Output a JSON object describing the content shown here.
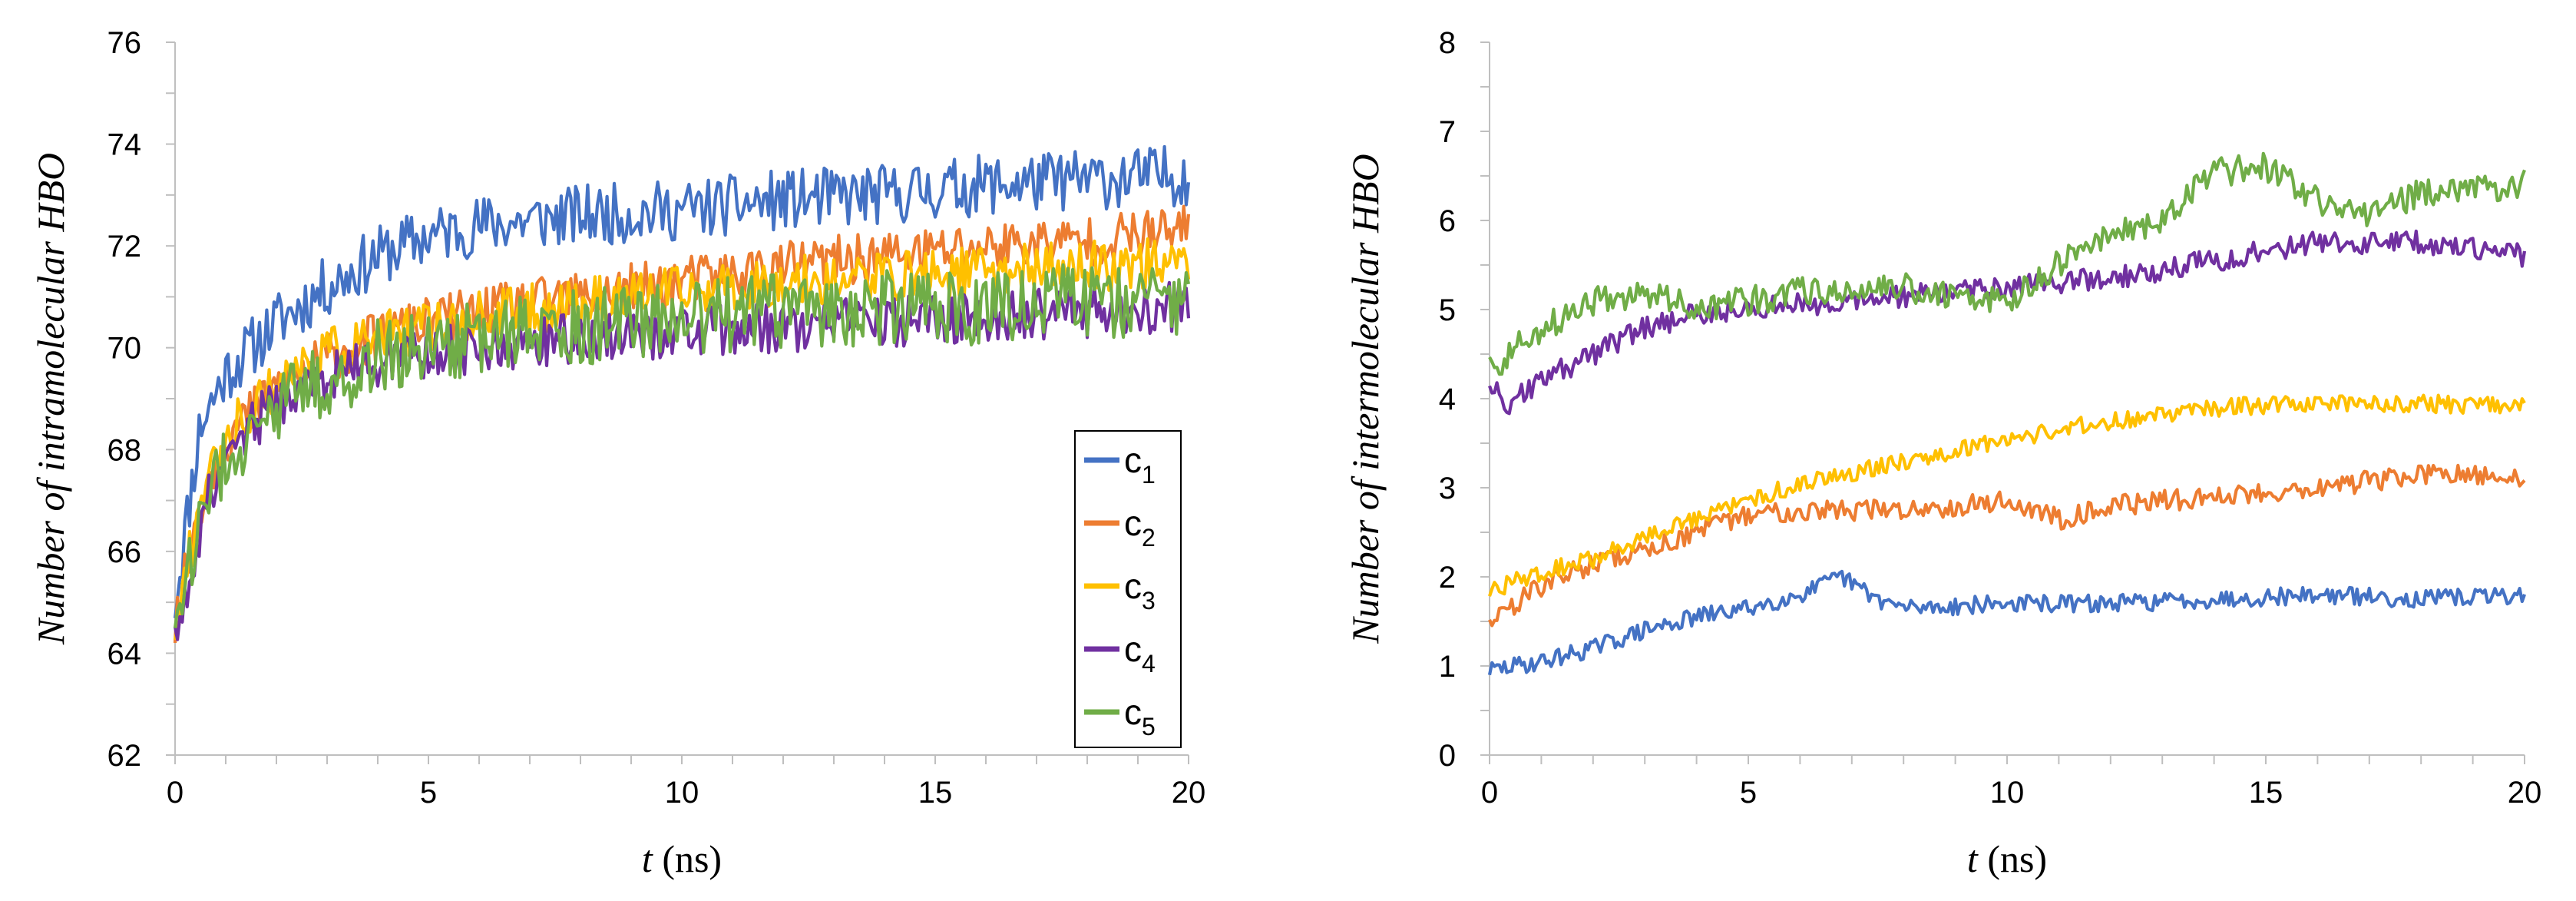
{
  "chart_data": [
    {
      "type": "line",
      "title": "",
      "xlabel_var": "t",
      "xlabel_unit": "(ns)",
      "ylabel": "Number of intramolecular HBO",
      "xlim": [
        0,
        20
      ],
      "ylim": [
        62,
        76
      ],
      "xticks": [
        0,
        5,
        10,
        15,
        20
      ],
      "yticks": [
        62,
        64,
        66,
        68,
        70,
        72,
        74,
        76
      ],
      "grid": false,
      "legend": "lower-right",
      "noise_seed": 11,
      "series": [
        {
          "name": "c",
          "sub": "1",
          "color": "#4472C4",
          "x": [
            0,
            0.5,
            1,
            2,
            3,
            4,
            5,
            6,
            8,
            10,
            12,
            14,
            16,
            18,
            20
          ],
          "y": [
            65,
            68.5,
            69.5,
            70.5,
            71.2,
            71.8,
            72.2,
            72.4,
            72.6,
            72.7,
            72.9,
            73.0,
            73.2,
            73.3,
            73.4
          ],
          "noise": 0.6
        },
        {
          "name": "c",
          "sub": "2",
          "color": "#ED7D31",
          "x": [
            0,
            0.5,
            1,
            2,
            3,
            4,
            5,
            6,
            8,
            10,
            12,
            14,
            16,
            18,
            20
          ],
          "y": [
            64.5,
            67.0,
            68.2,
            69.2,
            69.8,
            70.2,
            70.5,
            70.7,
            71.0,
            71.3,
            71.6,
            71.8,
            72.0,
            72.1,
            72.3
          ],
          "noise": 0.5
        },
        {
          "name": "c",
          "sub": "3",
          "color": "#FFC000",
          "x": [
            0,
            0.5,
            1,
            2,
            3,
            4,
            5,
            6,
            8,
            10,
            12,
            14,
            16,
            18,
            20
          ],
          "y": [
            64.5,
            67.0,
            68.3,
            69.3,
            69.9,
            70.2,
            70.4,
            70.6,
            70.9,
            71.1,
            71.3,
            71.4,
            71.5,
            71.6,
            71.7
          ],
          "noise": 0.5
        },
        {
          "name": "c",
          "sub": "4",
          "color": "#7030A0",
          "x": [
            0,
            0.5,
            1,
            2,
            3,
            4,
            5,
            6,
            8,
            10,
            12,
            14,
            16,
            18,
            20
          ],
          "y": [
            64.2,
            66.5,
            68.0,
            68.9,
            69.4,
            69.7,
            69.9,
            70.0,
            70.2,
            70.3,
            70.4,
            70.5,
            70.6,
            70.7,
            70.8
          ],
          "noise": 0.5
        },
        {
          "name": "c",
          "sub": "5",
          "color": "#70AD47",
          "x": [
            0,
            0.5,
            1,
            2,
            3,
            4,
            5,
            6,
            8,
            10,
            12,
            14,
            16,
            18,
            20
          ],
          "y": [
            64.2,
            66.5,
            67.8,
            68.8,
            69.4,
            69.8,
            70.0,
            70.2,
            70.4,
            70.6,
            70.7,
            70.8,
            70.8,
            70.9,
            71.0
          ],
          "noise": 0.75
        }
      ]
    },
    {
      "type": "line",
      "title": "",
      "xlabel_var": "t",
      "xlabel_unit": "(ns)",
      "ylabel": "Number of intermolecular HBO",
      "xlim": [
        0,
        20
      ],
      "ylim": [
        0,
        8
      ],
      "xticks": [
        0,
        5,
        10,
        15,
        20
      ],
      "yticks": [
        0,
        1,
        2,
        3,
        4,
        5,
        6,
        7,
        8
      ],
      "grid": false,
      "legend": "none",
      "noise_seed": 29,
      "series": [
        {
          "name": "c",
          "sub": "1",
          "color": "#4472C4",
          "x": [
            0,
            1,
            2,
            3,
            4,
            5,
            6,
            6.8,
            7.5,
            8,
            10,
            12,
            14,
            16,
            18,
            20
          ],
          "y": [
            0.95,
            1.05,
            1.2,
            1.4,
            1.55,
            1.65,
            1.8,
            2.0,
            1.75,
            1.65,
            1.7,
            1.7,
            1.75,
            1.8,
            1.75,
            1.8
          ],
          "noise": 0.1
        },
        {
          "name": "c",
          "sub": "2",
          "color": "#ED7D31",
          "x": [
            0,
            1,
            2,
            3,
            4,
            5,
            6,
            8,
            10,
            11,
            12,
            14,
            16,
            18,
            20
          ],
          "y": [
            1.5,
            1.9,
            2.15,
            2.3,
            2.5,
            2.7,
            2.75,
            2.75,
            2.85,
            2.65,
            2.8,
            2.9,
            3.0,
            3.15,
            3.1
          ],
          "noise": 0.12
        },
        {
          "name": "c",
          "sub": "3",
          "color": "#FFC000",
          "x": [
            0,
            1,
            2,
            3,
            4,
            5,
            6,
            8,
            10,
            12,
            13.5,
            14,
            16,
            18,
            20
          ],
          "y": [
            1.85,
            2.05,
            2.2,
            2.45,
            2.65,
            2.85,
            3.05,
            3.3,
            3.55,
            3.75,
            3.85,
            3.9,
            3.95,
            3.95,
            3.9
          ],
          "noise": 0.1
        },
        {
          "name": "c",
          "sub": "4",
          "color": "#7030A0",
          "x": [
            0,
            0.3,
            1,
            2,
            3,
            4,
            5,
            6,
            8,
            10,
            12,
            14,
            16,
            18,
            20
          ],
          "y": [
            4.2,
            3.9,
            4.2,
            4.5,
            4.8,
            4.95,
            5.0,
            5.05,
            5.15,
            5.25,
            5.35,
            5.55,
            5.75,
            5.75,
            5.6
          ],
          "noise": 0.13
        },
        {
          "name": "c",
          "sub": "5",
          "color": "#70AD47",
          "x": [
            0,
            1,
            2,
            3,
            4,
            5,
            6,
            8,
            10,
            11,
            12,
            13,
            14,
            15,
            16,
            17,
            18,
            20
          ],
          "y": [
            4.3,
            4.8,
            5.1,
            5.2,
            5.0,
            5.1,
            5.2,
            5.25,
            5.1,
            5.5,
            5.8,
            6.0,
            6.55,
            6.6,
            6.2,
            6.1,
            6.3,
            6.4
          ],
          "noise": 0.17
        }
      ]
    }
  ]
}
